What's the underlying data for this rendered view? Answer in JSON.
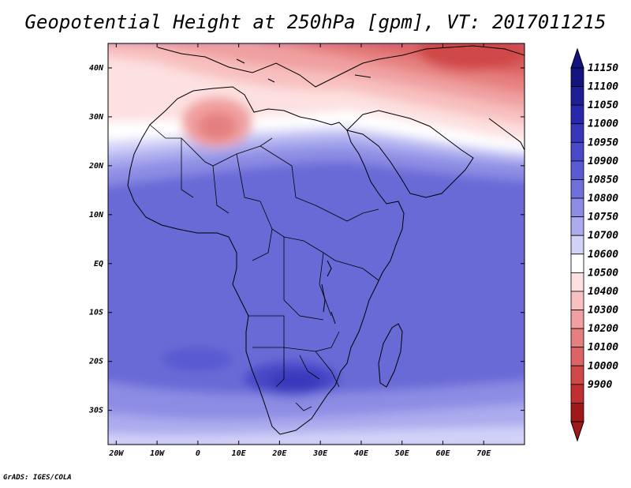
{
  "title": "Geopotential Height at 250hPa [gpm], VT: 2017011215",
  "footer": "GrADS: IGES/COLA",
  "lat_labels": [
    "40N",
    "30N",
    "20N",
    "10N",
    "EQ",
    "10S",
    "20S",
    "30S"
  ],
  "lon_labels": [
    "20W",
    "10W",
    "0",
    "10E",
    "20E",
    "30E",
    "40E",
    "50E",
    "60E",
    "70E"
  ],
  "colorbar": {
    "levels": [
      "11150",
      "11100",
      "11050",
      "11000",
      "10950",
      "10900",
      "10850",
      "10800",
      "10750",
      "10700",
      "10600",
      "10500",
      "10400",
      "10300",
      "10200",
      "10100",
      "10000",
      "9900"
    ],
    "colors": [
      "#141480",
      "#1e1e96",
      "#2828aa",
      "#3737bb",
      "#4848c8",
      "#5a5ad2",
      "#7070dc",
      "#8c8ce4",
      "#ababee",
      "#d2d2f8",
      "#ffffff",
      "#fde0e0",
      "#f8c0c0",
      "#f0a0a0",
      "#e68080",
      "#dc6464",
      "#d04848",
      "#c03030",
      "#a01818"
    ],
    "top_arrow_color": "#141480",
    "bottom_arrow_color": "#a01818"
  },
  "chart_data": {
    "type": "heatmap",
    "title": "Geopotential Height at 250hPa [gpm], VT: 2017011215",
    "xlim": [
      -22,
      80
    ],
    "ylim": [
      -37,
      45
    ],
    "x_ticks": [
      -20,
      -10,
      0,
      10,
      20,
      30,
      40,
      50,
      60,
      70
    ],
    "y_ticks": [
      40,
      30,
      20,
      10,
      0,
      -10,
      -20,
      -30
    ],
    "field_bands": [
      {
        "lat_range": [
          40,
          45
        ],
        "value": 10100
      },
      {
        "lat_range": [
          35,
          40
        ],
        "value": 10300
      },
      {
        "lat_range": [
          30,
          35
        ],
        "value": 10500
      },
      {
        "lat_range": [
          25,
          30
        ],
        "value": 10650
      },
      {
        "lat_range": [
          20,
          25
        ],
        "value": 10800
      },
      {
        "lat_range": [
          10,
          20
        ],
        "value": 10900
      },
      {
        "lat_range": [
          -20,
          10
        ],
        "value": 10950
      },
      {
        "lat_range": [
          -30,
          -20
        ],
        "value": 10900
      },
      {
        "lat_range": [
          -37,
          -30
        ],
        "value": 10800
      }
    ],
    "maxima": [
      {
        "lon": 27,
        "lat": -23,
        "value": 11000
      }
    ],
    "minima": [
      {
        "lon": 4,
        "lat": 31,
        "value": 10400
      },
      {
        "lon": 65,
        "lat": 43,
        "value": 10100
      }
    ]
  }
}
